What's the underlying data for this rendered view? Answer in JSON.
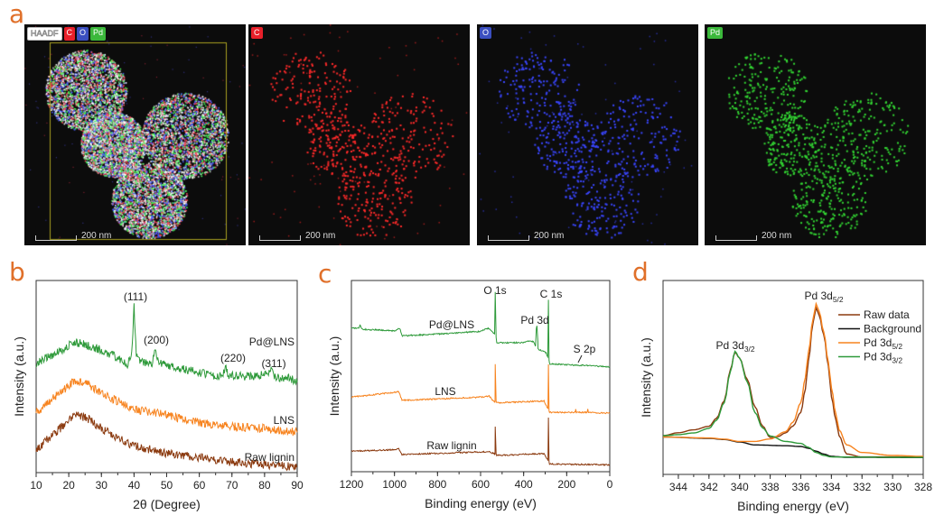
{
  "panel_labels": {
    "a": "a",
    "b": "b",
    "c": "c",
    "d": "d"
  },
  "panel_a": {
    "images": [
      {
        "tags": [
          {
            "text": "HAADF",
            "color": "#ffffff"
          },
          {
            "text": "C",
            "color": "#E8202A"
          },
          {
            "text": "O",
            "color": "#3B4FC0"
          },
          {
            "text": "Pd",
            "color": "#3BB83B"
          }
        ],
        "channel": "overlay"
      },
      {
        "tags": [
          {
            "text": "C",
            "color": "#E8202A"
          }
        ],
        "channel": "C"
      },
      {
        "tags": [
          {
            "text": "O",
            "color": "#3B4FC0"
          }
        ],
        "channel": "O"
      },
      {
        "tags": [
          {
            "text": "Pd",
            "color": "#3BB83B"
          }
        ],
        "channel": "Pd"
      }
    ],
    "scale_bar": "200 nm"
  },
  "chart_data": [
    {
      "type": "line",
      "panel": "b",
      "xlabel": "2θ (Degree)",
      "ylabel": "Intensity (a.u.)",
      "xlim": [
        10,
        90
      ],
      "xticks": [
        10,
        20,
        30,
        40,
        50,
        60,
        70,
        80,
        90
      ],
      "series": [
        {
          "name": "Pd@LNS",
          "color": "#2E9A3A",
          "points": [
            [
              10,
              57
            ],
            [
              16,
              62
            ],
            [
              22,
              68
            ],
            [
              28,
              65
            ],
            [
              35,
              60
            ],
            [
              38,
              56
            ],
            [
              39.3,
              62
            ],
            [
              40,
              86
            ],
            [
              40.7,
              62
            ],
            [
              42,
              58
            ],
            [
              45.5,
              57
            ],
            [
              46.5,
              65
            ],
            [
              47.5,
              57
            ],
            [
              55,
              54
            ],
            [
              65,
              50
            ],
            [
              67.3,
              51
            ],
            [
              68,
              56
            ],
            [
              68.7,
              51
            ],
            [
              75,
              50
            ],
            [
              81.2,
              51
            ],
            [
              82,
              54
            ],
            [
              83,
              50
            ],
            [
              86,
              49
            ],
            [
              87,
              50
            ],
            [
              90,
              47
            ]
          ]
        },
        {
          "name": "LNS",
          "color": "#F7831E",
          "points": [
            [
              10,
              31
            ],
            [
              16,
              40
            ],
            [
              22,
              48
            ],
            [
              26,
              46
            ],
            [
              30,
              41
            ],
            [
              35,
              37
            ],
            [
              40,
              33
            ],
            [
              50,
              30
            ],
            [
              60,
              26
            ],
            [
              70,
              24
            ],
            [
              80,
              23
            ],
            [
              90,
              21
            ]
          ]
        },
        {
          "name": "Raw lignin",
          "color": "#8B3A0F",
          "points": [
            [
              10,
              12
            ],
            [
              16,
              21
            ],
            [
              22,
              30
            ],
            [
              26,
              28
            ],
            [
              30,
              23
            ],
            [
              35,
              18
            ],
            [
              40,
              14
            ],
            [
              50,
              10
            ],
            [
              60,
              8
            ],
            [
              70,
              5.5
            ],
            [
              80,
              4
            ],
            [
              90,
              3
            ]
          ]
        }
      ],
      "annotations": [
        "(111)",
        "(200)",
        "(220)",
        "(311)"
      ]
    },
    {
      "type": "line",
      "panel": "c",
      "xlabel": "Binding energy (eV)",
      "ylabel": "Intensity (a.u.)",
      "xlim": [
        1200,
        0
      ],
      "xticks": [
        1200,
        1000,
        800,
        600,
        400,
        200,
        0
      ],
      "series": [
        {
          "name": "Pd@LNS",
          "color": "#2E9A3A",
          "points": [
            [
              1200,
              75
            ],
            [
              1165,
              75
            ],
            [
              1160,
              76.5
            ],
            [
              1150,
              74.5
            ],
            [
              1000,
              73.7
            ],
            [
              985,
              74.5
            ],
            [
              975,
              75
            ],
            [
              965,
              71
            ],
            [
              800,
              72
            ],
            [
              600,
              73.4
            ],
            [
              565,
              75
            ],
            [
              545,
              73
            ],
            [
              535,
              72
            ],
            [
              532,
              94
            ],
            [
              528,
              70
            ],
            [
              525,
              67.4
            ],
            [
              400,
              67.5
            ],
            [
              365,
              68.5
            ],
            [
              355,
              68
            ],
            [
              345,
              65.8
            ],
            [
              341,
              75
            ],
            [
              338,
              76
            ],
            [
              334,
              68
            ],
            [
              333,
              64
            ],
            [
              305,
              63
            ],
            [
              295,
              62
            ],
            [
              288,
              60
            ],
            [
              285,
              90
            ],
            [
              282,
              58
            ],
            [
              280,
              56.4
            ],
            [
              200,
              56
            ],
            [
              100,
              55.5
            ],
            [
              0,
              54.9
            ]
          ]
        },
        {
          "name": "LNS",
          "color": "#F7831E",
          "points": [
            [
              1200,
              39
            ],
            [
              1000,
              41.5
            ],
            [
              980,
              42
            ],
            [
              965,
              37.3
            ],
            [
              600,
              39
            ],
            [
              560,
              39.5
            ],
            [
              540,
              37
            ],
            [
              533,
              36.5
            ],
            [
              532,
              56.4
            ],
            [
              528,
              37
            ],
            [
              525,
              36
            ],
            [
              305,
              37
            ],
            [
              292,
              34
            ],
            [
              287,
              33
            ],
            [
              285,
              56
            ],
            [
              282,
              32
            ],
            [
              280,
              31
            ],
            [
              160,
              31
            ],
            [
              158,
              32.5
            ],
            [
              155,
              31
            ],
            [
              105,
              31
            ],
            [
              102,
              32.5
            ],
            [
              99,
              31
            ],
            [
              0,
              30.6
            ]
          ]
        },
        {
          "name": "Raw lignin",
          "color": "#8B3A0F",
          "points": [
            [
              1200,
              10.7
            ],
            [
              1000,
              11.5
            ],
            [
              980,
              12
            ],
            [
              965,
              9
            ],
            [
              560,
              10.5
            ],
            [
              540,
              9.5
            ],
            [
              533,
              9.2
            ],
            [
              532,
              23.5
            ],
            [
              528,
              9
            ],
            [
              525,
              8.5
            ],
            [
              305,
              9.5
            ],
            [
              292,
              7
            ],
            [
              287,
              6
            ],
            [
              285,
              28
            ],
            [
              282,
              5
            ],
            [
              280,
              4
            ],
            [
              0,
              3.6
            ]
          ]
        }
      ],
      "annotations": [
        "O 1s",
        "C 1s",
        "Pd 3d",
        "S 2p"
      ]
    },
    {
      "type": "line",
      "panel": "d",
      "xlabel": "Binding energy (eV)",
      "ylabel": "Intensity (a.u.)",
      "xlim": [
        345,
        328
      ],
      "xticks": [
        344,
        342,
        340,
        338,
        336,
        334,
        332,
        330,
        328
      ],
      "legend": "top-right",
      "series": [
        {
          "name": {
            "main": "Raw data",
            "sub": ""
          },
          "color": "#8B3A0F",
          "points": [
            [
              345,
              20
            ],
            [
              344,
              21.5
            ],
            [
              343,
              23
            ],
            [
              342,
              24.8
            ],
            [
              341.5,
              29
            ],
            [
              341,
              38
            ],
            [
              340.6,
              54
            ],
            [
              340.3,
              63
            ],
            [
              340,
              60
            ],
            [
              339.5,
              49
            ],
            [
              339,
              35
            ],
            [
              338.5,
              25
            ],
            [
              338,
              19
            ],
            [
              337.5,
              19.5
            ],
            [
              337,
              21.4
            ],
            [
              336.5,
              25
            ],
            [
              336,
              32
            ],
            [
              335.7,
              44
            ],
            [
              335.5,
              58.5
            ],
            [
              335.2,
              78
            ],
            [
              335,
              86
            ],
            [
              334.8,
              82
            ],
            [
              334.5,
              72
            ],
            [
              334.2,
              56
            ],
            [
              334,
              40
            ],
            [
              333.7,
              28
            ],
            [
              333.5,
              20
            ],
            [
              333,
              10.5
            ],
            [
              332,
              9
            ],
            [
              328,
              9
            ]
          ]
        },
        {
          "name": {
            "main": "Background",
            "sub": ""
          },
          "color": "#111111",
          "points": [
            [
              345,
              19.3
            ],
            [
              342,
              18.6
            ],
            [
              341,
              18
            ],
            [
              340,
              16.7
            ],
            [
              339,
              15.2
            ],
            [
              337,
              14.8
            ],
            [
              336,
              14.4
            ],
            [
              335.5,
              13.5
            ],
            [
              335,
              12
            ],
            [
              334.5,
              10.5
            ],
            [
              334,
              9.3
            ],
            [
              333,
              8.8
            ],
            [
              328,
              8.7
            ]
          ]
        },
        {
          "name": {
            "main": "Pd 3d",
            "sub": "5/2"
          },
          "color": "#F7831E",
          "points": [
            [
              345,
              19.3
            ],
            [
              342,
              18.8
            ],
            [
              341,
              18.2
            ],
            [
              340,
              17
            ],
            [
              339,
              17
            ],
            [
              338,
              18.3
            ],
            [
              337,
              22
            ],
            [
              336.5,
              27
            ],
            [
              336,
              37
            ],
            [
              335.7,
              50
            ],
            [
              335.5,
              63
            ],
            [
              335.2,
              80
            ],
            [
              335,
              88
            ],
            [
              334.8,
              84
            ],
            [
              334.5,
              73.5
            ],
            [
              334.2,
              58
            ],
            [
              334,
              44.6
            ],
            [
              333.7,
              31
            ],
            [
              333.5,
              23
            ],
            [
              333,
              15.2
            ],
            [
              332,
              11.3
            ],
            [
              330,
              9.8
            ],
            [
              328,
              9.3
            ]
          ]
        },
        {
          "name": {
            "main": "Pd 3d",
            "sub": "3/2"
          },
          "color": "#2E9A3A",
          "points": [
            [
              345,
              20
            ],
            [
              344,
              20.5
            ],
            [
              343,
              21.4
            ],
            [
              342,
              23.7
            ],
            [
              341.5,
              28
            ],
            [
              341,
              37
            ],
            [
              340.6,
              53
            ],
            [
              340.3,
              63.5
            ],
            [
              340,
              60
            ],
            [
              339.5,
              47.7
            ],
            [
              339,
              32
            ],
            [
              338.5,
              24
            ],
            [
              338,
              19.8
            ],
            [
              337,
              17
            ],
            [
              336,
              16
            ],
            [
              335.5,
              14
            ],
            [
              335,
              11.3
            ],
            [
              334.5,
              9.8
            ],
            [
              334,
              9
            ],
            [
              328,
              8.8
            ]
          ]
        }
      ],
      "annotations": [
        {
          "main": "Pd 3d",
          "sub": "5/2"
        },
        {
          "main": "Pd 3d",
          "sub": "3/2"
        }
      ]
    }
  ]
}
